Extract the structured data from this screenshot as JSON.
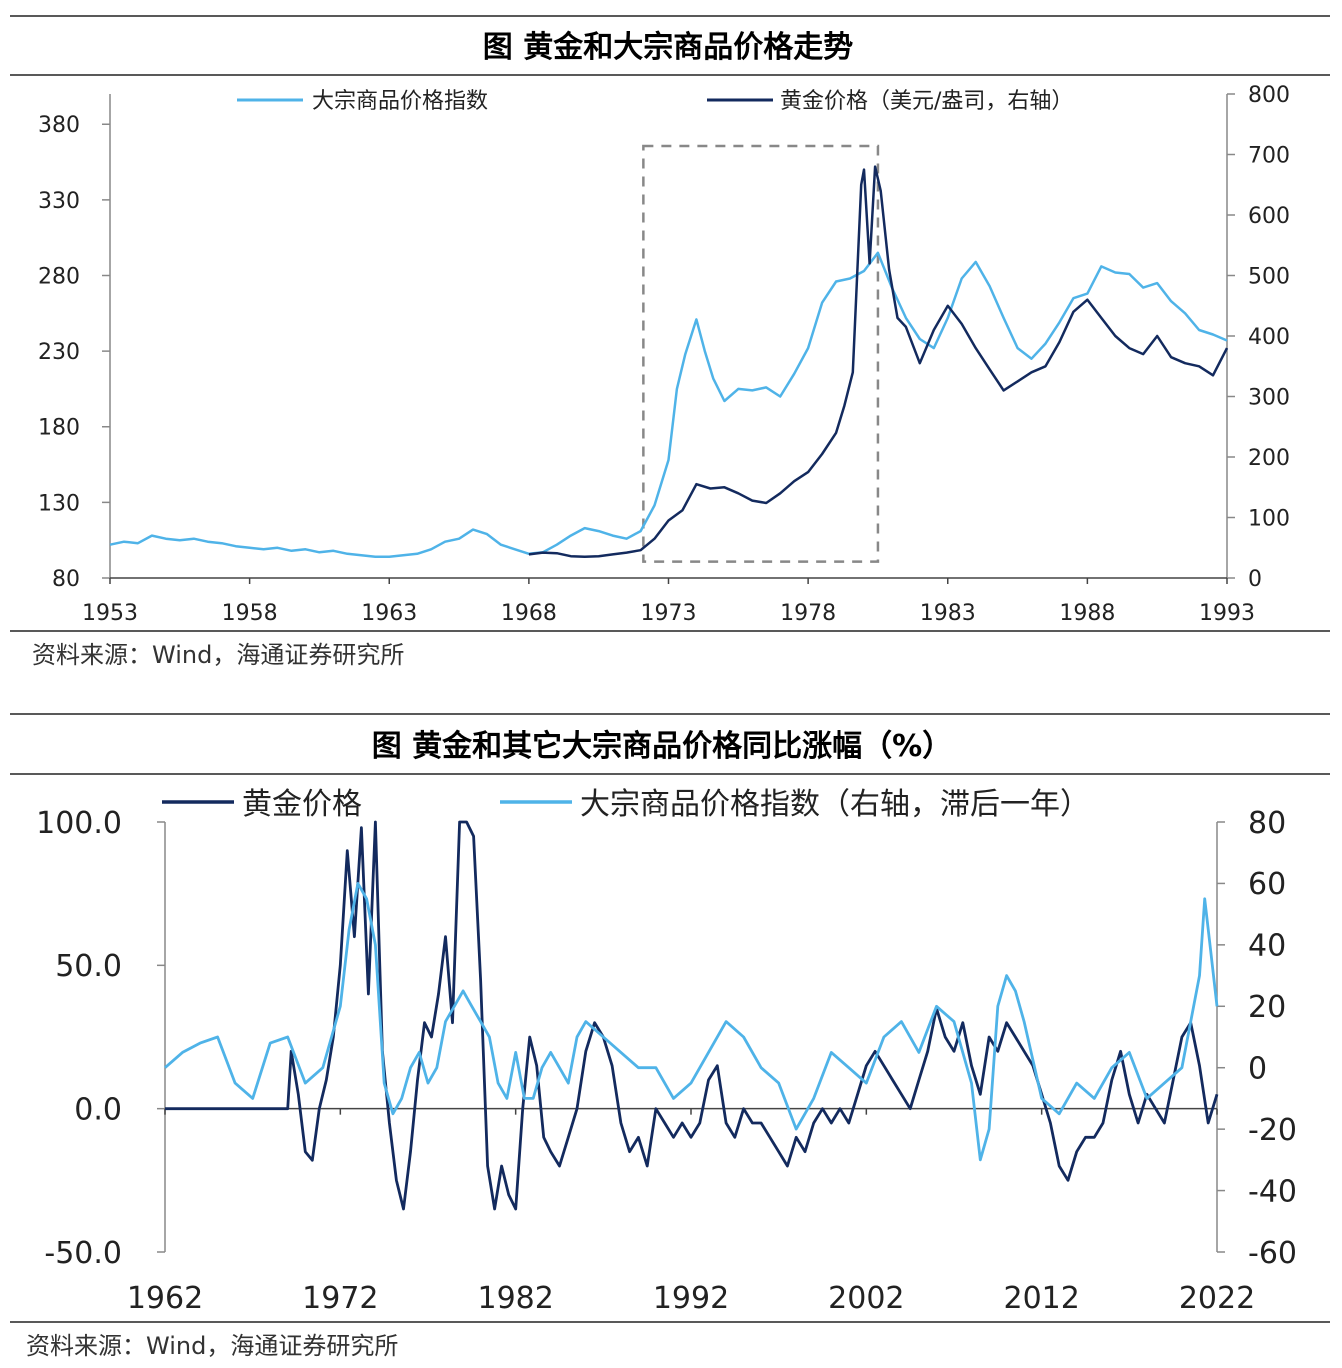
{
  "chart_data": [
    {
      "type": "line",
      "title": "图  黄金和大宗商品价格走势",
      "source": "资料来源：Wind，海通证券研究所",
      "x_ticks": [
        "1953",
        "1958",
        "1963",
        "1968",
        "1973",
        "1978",
        "1983",
        "1988",
        "1993"
      ],
      "xlim": [
        1953,
        1993
      ],
      "left_ticks": [
        "80",
        "130",
        "180",
        "230",
        "280",
        "330",
        "380"
      ],
      "left_ylim": [
        80,
        400
      ],
      "right_ticks": [
        "0",
        "100",
        "200",
        "300",
        "400",
        "500",
        "600",
        "700",
        "800"
      ],
      "right_ylim": [
        0,
        800
      ],
      "highlight_box": {
        "x": [
          1972.1,
          1980.5
        ],
        "y_right": [
          27,
          714
        ],
        "style": "dashed gray"
      },
      "series": [
        {
          "name": "大宗商品价格指数",
          "axis": "left",
          "color": "#4FB3E8",
          "x": [
            1953.0,
            1953.5,
            1954.0,
            1954.5,
            1955.0,
            1955.5,
            1956.0,
            1956.5,
            1957.0,
            1957.5,
            1958.0,
            1958.5,
            1959.0,
            1959.5,
            1960.0,
            1960.5,
            1961.0,
            1961.5,
            1962.0,
            1962.5,
            1963.0,
            1963.5,
            1964.0,
            1964.5,
            1965.0,
            1965.5,
            1966.0,
            1966.5,
            1967.0,
            1967.5,
            1968.0,
            1968.5,
            1969.0,
            1969.5,
            1970.0,
            1970.5,
            1971.0,
            1971.5,
            1972.0,
            1972.5,
            1973.0,
            1973.3,
            1973.6,
            1974.0,
            1974.3,
            1974.6,
            1975.0,
            1975.5,
            1976.0,
            1976.5,
            1977.0,
            1977.5,
            1978.0,
            1978.5,
            1979.0,
            1979.5,
            1980.0,
            1980.5,
            1981.0,
            1981.5,
            1982.0,
            1982.5,
            1983.0,
            1983.5,
            1984.0,
            1984.5,
            1985.0,
            1985.5,
            1986.0,
            1986.5,
            1987.0,
            1987.5,
            1988.0,
            1988.5,
            1989.0,
            1989.5,
            1990.0,
            1990.5,
            1991.0,
            1991.5,
            1992.0,
            1992.5,
            1993.0
          ],
          "values": [
            102,
            104,
            103,
            108,
            106,
            105,
            106,
            104,
            103,
            101,
            100,
            99,
            100,
            98,
            99,
            97,
            98,
            96,
            95,
            94,
            94,
            95,
            96,
            99,
            104,
            106,
            112,
            109,
            102,
            99,
            96,
            97,
            102,
            108,
            113,
            111,
            108,
            106,
            111,
            128,
            158,
            205,
            228,
            251,
            230,
            212,
            197,
            205,
            204,
            206,
            200,
            215,
            232,
            262,
            276,
            278,
            283,
            295,
            272,
            252,
            238,
            232,
            252,
            278,
            289,
            273,
            252,
            232,
            225,
            235,
            249,
            265,
            268,
            286,
            282,
            281,
            272,
            275,
            263,
            255,
            244,
            241,
            237
          ]
        },
        {
          "name": "黄金价格（美元/盎司，右轴）",
          "axis": "right",
          "color": "#132A5E",
          "x": [
            1968.0,
            1968.5,
            1969.0,
            1969.5,
            1970.0,
            1970.5,
            1971.0,
            1971.5,
            1972.0,
            1972.5,
            1973.0,
            1973.5,
            1974.0,
            1974.5,
            1975.0,
            1975.5,
            1976.0,
            1976.5,
            1977.0,
            1977.5,
            1978.0,
            1978.5,
            1979.0,
            1979.3,
            1979.6,
            1979.9,
            1980.0,
            1980.2,
            1980.4,
            1980.6,
            1980.9,
            1981.2,
            1981.5,
            1982.0,
            1982.5,
            1983.0,
            1983.5,
            1984.0,
            1984.5,
            1985.0,
            1985.5,
            1986.0,
            1986.5,
            1987.0,
            1987.5,
            1988.0,
            1988.5,
            1989.0,
            1989.5,
            1990.0,
            1990.5,
            1991.0,
            1991.5,
            1992.0,
            1992.5,
            1993.0
          ],
          "values": [
            39,
            42,
            41,
            36,
            35,
            36,
            39,
            42,
            46,
            65,
            95,
            112,
            155,
            148,
            150,
            140,
            128,
            124,
            140,
            160,
            175,
            205,
            240,
            285,
            340,
            650,
            675,
            520,
            680,
            640,
            510,
            430,
            415,
            355,
            410,
            450,
            420,
            380,
            345,
            310,
            325,
            340,
            350,
            390,
            440,
            460,
            430,
            400,
            380,
            370,
            400,
            365,
            355,
            350,
            335,
            380
          ]
        }
      ]
    },
    {
      "type": "line",
      "title": "图  黄金和其它大宗商品价格同比涨幅（%）",
      "source": "资料来源：Wind，海通证券研究所",
      "x_ticks": [
        "1962",
        "1972",
        "1982",
        "1992",
        "2002",
        "2012",
        "2022"
      ],
      "xlim": [
        1962,
        2022
      ],
      "left_ticks": [
        "-50.0",
        "0.0",
        "50.0",
        "100.0"
      ],
      "left_ylim": [
        -50,
        100
      ],
      "right_ticks": [
        "-60",
        "-40",
        "-20",
        "0",
        "20",
        "40",
        "60",
        "80"
      ],
      "right_ylim": [
        -60,
        80
      ],
      "series": [
        {
          "name": "黄金价格",
          "axis": "left",
          "color": "#132A5E",
          "x": [
            1962.0,
            1964.0,
            1966.0,
            1968.0,
            1969.0,
            1969.2,
            1969.6,
            1970.0,
            1970.4,
            1970.8,
            1971.2,
            1971.6,
            1972.0,
            1972.4,
            1972.8,
            1973.2,
            1973.6,
            1974.0,
            1974.4,
            1974.8,
            1975.2,
            1975.6,
            1976.0,
            1976.4,
            1976.8,
            1977.2,
            1977.6,
            1978.0,
            1978.4,
            1978.8,
            1979.2,
            1979.6,
            1980.0,
            1980.4,
            1980.8,
            1981.2,
            1981.6,
            1982.0,
            1982.4,
            1982.8,
            1983.2,
            1983.6,
            1984.0,
            1984.5,
            1985.0,
            1985.5,
            1986.0,
            1986.5,
            1987.0,
            1987.5,
            1988.0,
            1988.5,
            1989.0,
            1989.5,
            1990.0,
            1990.5,
            1991.0,
            1991.5,
            1992.0,
            1992.5,
            1993.0,
            1993.5,
            1994.0,
            1994.5,
            1995.0,
            1995.5,
            1996.0,
            1996.5,
            1997.0,
            1997.5,
            1998.0,
            1998.5,
            1999.0,
            1999.5,
            2000.0,
            2000.5,
            2001.0,
            2001.5,
            2002.0,
            2002.5,
            2003.0,
            2003.5,
            2004.0,
            2004.5,
            2005.0,
            2005.5,
            2006.0,
            2006.5,
            2007.0,
            2007.5,
            2008.0,
            2008.5,
            2009.0,
            2009.5,
            2010.0,
            2010.5,
            2011.0,
            2011.5,
            2012.0,
            2012.5,
            2013.0,
            2013.5,
            2014.0,
            2014.5,
            2015.0,
            2015.5,
            2016.0,
            2016.5,
            2017.0,
            2017.5,
            2018.0,
            2018.5,
            2019.0,
            2019.5,
            2020.0,
            2020.5,
            2021.0,
            2021.5,
            2022.0
          ],
          "values": [
            0,
            0,
            0,
            0,
            0,
            20,
            5,
            -15,
            -18,
            0,
            10,
            25,
            50,
            90,
            60,
            98,
            40,
            100,
            20,
            -5,
            -25,
            -35,
            -15,
            10,
            30,
            25,
            40,
            60,
            30,
            100,
            100,
            95,
            45,
            -20,
            -35,
            -20,
            -30,
            -35,
            0,
            25,
            15,
            -10,
            -15,
            -20,
            -10,
            0,
            20,
            30,
            25,
            15,
            -5,
            -15,
            -10,
            -20,
            0,
            -5,
            -10,
            -5,
            -10,
            -5,
            10,
            15,
            -5,
            -10,
            0,
            -5,
            -5,
            -10,
            -15,
            -20,
            -10,
            -15,
            -5,
            0,
            -5,
            0,
            -5,
            5,
            15,
            20,
            15,
            10,
            5,
            0,
            10,
            20,
            35,
            25,
            20,
            30,
            15,
            5,
            25,
            20,
            30,
            25,
            20,
            15,
            5,
            -5,
            -20,
            -25,
            -15,
            -10,
            -10,
            -5,
            10,
            20,
            5,
            -5,
            5,
            0,
            -5,
            10,
            25,
            30,
            15,
            -5,
            5
          ]
        },
        {
          "name": "大宗商品价格指数（右轴，滞后一年）",
          "axis": "right",
          "color": "#4FB3E8",
          "x": [
            1962.0,
            1963.0,
            1964.0,
            1965.0,
            1966.0,
            1967.0,
            1968.0,
            1969.0,
            1970.0,
            1971.0,
            1972.0,
            1972.5,
            1973.0,
            1973.5,
            1974.0,
            1974.5,
            1975.0,
            1975.5,
            1976.0,
            1976.5,
            1977.0,
            1977.5,
            1978.0,
            1978.5,
            1979.0,
            1979.5,
            1980.0,
            1980.5,
            1981.0,
            1981.5,
            1982.0,
            1982.5,
            1983.0,
            1983.5,
            1984.0,
            1984.5,
            1985.0,
            1985.5,
            1986.0,
            1987.0,
            1988.0,
            1989.0,
            1990.0,
            1991.0,
            1992.0,
            1993.0,
            1994.0,
            1995.0,
            1996.0,
            1997.0,
            1998.0,
            1999.0,
            2000.0,
            2001.0,
            2002.0,
            2003.0,
            2004.0,
            2005.0,
            2006.0,
            2007.0,
            2008.0,
            2008.5,
            2009.0,
            2009.5,
            2010.0,
            2010.5,
            2011.0,
            2012.0,
            2013.0,
            2014.0,
            2015.0,
            2016.0,
            2017.0,
            2018.0,
            2019.0,
            2020.0,
            2021.0,
            2021.3,
            2021.6,
            2022.0
          ],
          "values": [
            0,
            5,
            8,
            10,
            -5,
            -10,
            8,
            10,
            -5,
            0,
            20,
            45,
            60,
            55,
            40,
            -5,
            -15,
            -10,
            0,
            5,
            -5,
            0,
            15,
            20,
            25,
            20,
            15,
            10,
            -5,
            -10,
            5,
            -10,
            -10,
            0,
            5,
            0,
            -5,
            10,
            15,
            10,
            5,
            0,
            0,
            -10,
            -5,
            5,
            15,
            10,
            0,
            -5,
            -20,
            -10,
            5,
            0,
            -5,
            10,
            15,
            5,
            20,
            15,
            -5,
            -30,
            -20,
            20,
            30,
            25,
            15,
            -10,
            -15,
            -5,
            -10,
            0,
            5,
            -10,
            -5,
            0,
            30,
            55,
            40,
            20
          ]
        }
      ]
    }
  ]
}
